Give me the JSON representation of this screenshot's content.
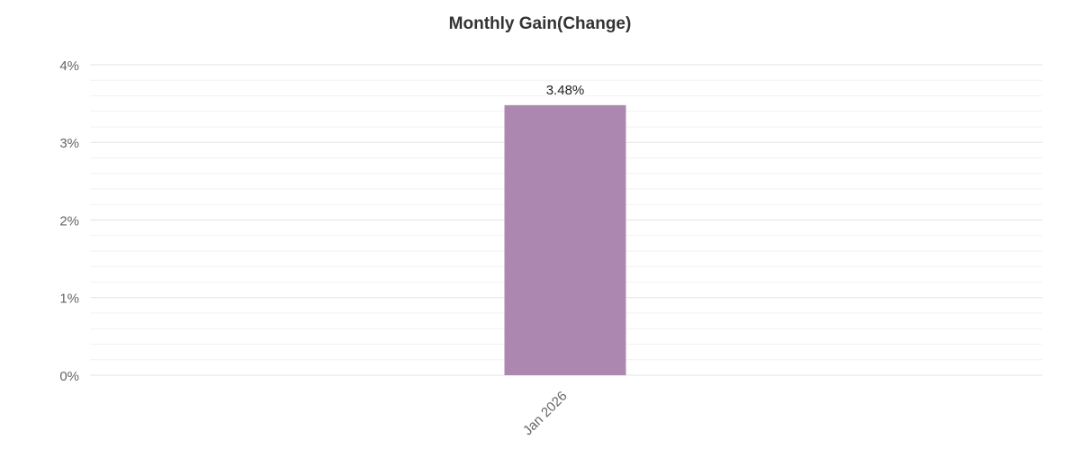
{
  "chart_data": {
    "type": "bar",
    "title": "Monthly Gain(Change)",
    "categories": [
      "Jan 2026"
    ],
    "values": [
      3.48
    ],
    "value_labels": [
      "3.48%"
    ],
    "color": "#ac87b0",
    "ylim": [
      0,
      4
    ],
    "yticks": [
      {
        "value": 0,
        "label": "0%"
      },
      {
        "value": 1,
        "label": "1%"
      },
      {
        "value": 2,
        "label": "2%"
      },
      {
        "value": 3,
        "label": "3%"
      },
      {
        "value": 4,
        "label": "4%"
      }
    ],
    "minor_yticks": [
      0.2,
      0.4,
      0.6,
      0.8,
      1.2,
      1.4,
      1.6,
      1.8,
      2.2,
      2.4,
      2.6,
      2.8,
      3.2,
      3.4,
      3.6,
      3.8
    ],
    "grid": true
  }
}
